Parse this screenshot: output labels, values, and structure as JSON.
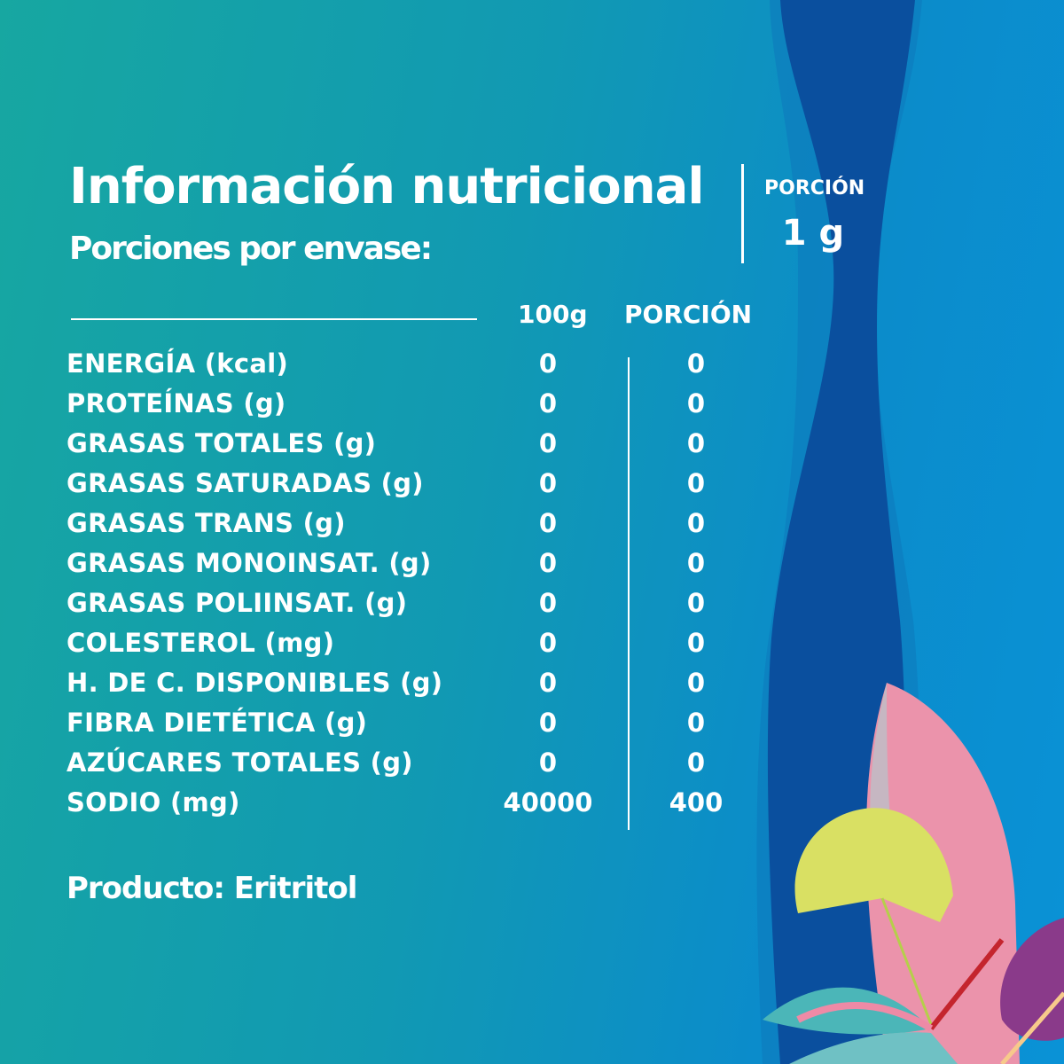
{
  "header": {
    "title": "Información nutricional",
    "subtitle": "Porciones por envase:"
  },
  "serving": {
    "label": "PORCIÓN",
    "value": "1 g"
  },
  "table": {
    "columns": [
      "100g",
      "PORCIÓN"
    ],
    "rows": [
      {
        "label": "ENERGÍA (kcal)",
        "per100g": "0",
        "portion": "0"
      },
      {
        "label": "PROTEÍNAS (g)",
        "per100g": "0",
        "portion": "0"
      },
      {
        "label": "GRASAS TOTALES (g)",
        "per100g": "0",
        "portion": "0"
      },
      {
        "label": "GRASAS SATURADAS (g)",
        "per100g": "0",
        "portion": "0"
      },
      {
        "label": "GRASAS TRANS (g)",
        "per100g": "0",
        "portion": "0"
      },
      {
        "label": "GRASAS MONOINSAT. (g)",
        "per100g": "0",
        "portion": "0"
      },
      {
        "label": "GRASAS POLIINSAT. (g)",
        "per100g": "0",
        "portion": "0"
      },
      {
        "label": "COLESTEROL (mg)",
        "per100g": "0",
        "portion": "0"
      },
      {
        "label": "H. DE C. DISPONIBLES (g)",
        "per100g": "0",
        "portion": "0"
      },
      {
        "label": "FIBRA DIETÉTICA (g)",
        "per100g": "0",
        "portion": "0"
      },
      {
        "label": "AZÚCARES TOTALES (g)",
        "per100g": "0",
        "portion": "0"
      },
      {
        "label": "SODIO (mg)",
        "per100g": "40000",
        "portion": "400"
      }
    ]
  },
  "product": "Producto: Eritritol",
  "colors": {
    "teal": "#17a7a1",
    "blue": "#0a92d6",
    "dark_band": "#0a4f9e",
    "leaf_yellow": "#d9e063",
    "leaf_pink": "#ee8aa6",
    "leaf_purple": "#8a3a8a"
  }
}
